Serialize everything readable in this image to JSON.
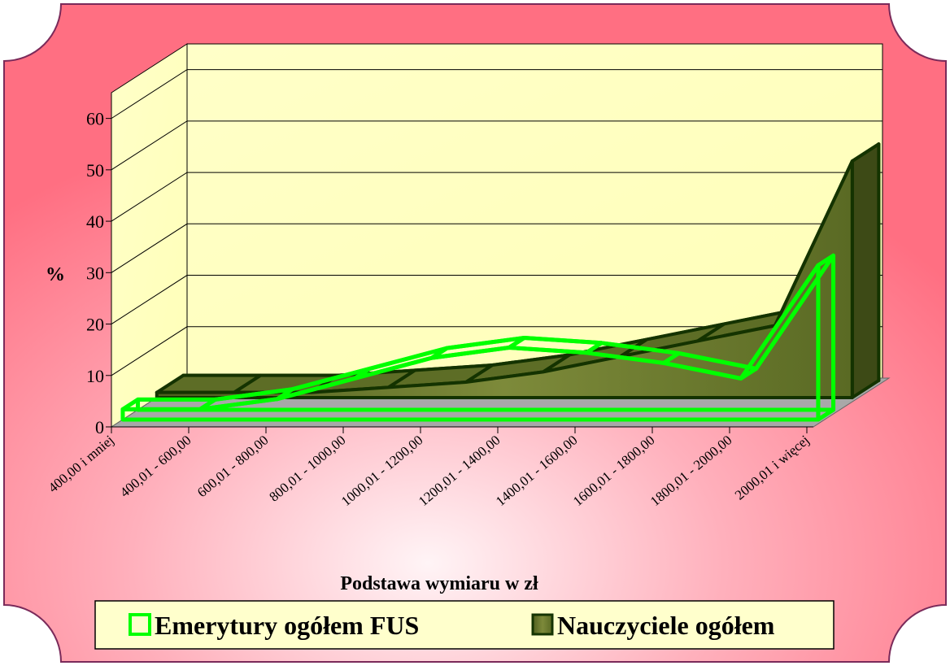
{
  "chart_data": {
    "type": "area3d",
    "categories": [
      "400,00 i mniej",
      "400,01 - 600,00",
      "600,01 - 800,00",
      "800,01 - 1000,00",
      "1000,01 - 1200,00",
      "1200,01 - 1400,00",
      "1400,01 - 1600,00",
      "1600,01 - 1800,00",
      "1800,01 - 2000,00",
      "2000,01 i więcej"
    ],
    "series": [
      {
        "name": "Emerytury ogółem  FUS",
        "color": "#00ff00",
        "values": [
          2,
          2,
          4,
          8,
          12,
          14,
          13,
          11,
          8,
          30
        ]
      },
      {
        "name": "Nauczyciele ogółem",
        "color": "#6b7a2a",
        "values": [
          1,
          1,
          1,
          2,
          3,
          5,
          8,
          11,
          14,
          46
        ]
      }
    ],
    "x_label": "Podstawa wymiaru w zł",
    "y_label": "%",
    "ylim": [
      0,
      65
    ],
    "yticks": [
      0,
      10,
      20,
      30,
      40,
      50,
      60
    ],
    "grid": true,
    "legend": "bottom"
  }
}
